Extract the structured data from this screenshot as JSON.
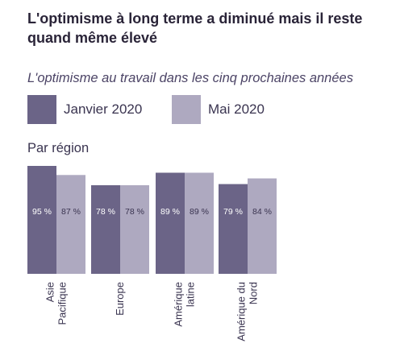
{
  "title": "L'optimisme à long terme a diminué mais il reste quand même élevé",
  "subtitle": "L'optimisme au travail dans les cinq prochaines années",
  "legend": [
    {
      "label": "Janvier 2020",
      "color": "#6b6487"
    },
    {
      "label": "Mai 2020",
      "color": "#aea9c0"
    }
  ],
  "section_label": "Par région",
  "chart_data": {
    "type": "bar",
    "categories": [
      [
        "Asie",
        "Pacifique"
      ],
      [
        "Europe"
      ],
      [
        "Amérique",
        "latine"
      ],
      [
        "Amérique du",
        "Nord"
      ]
    ],
    "series": [
      {
        "name": "Janvier 2020",
        "values": [
          95,
          78,
          89,
          79
        ],
        "labels": [
          "95 %",
          "78 %",
          "89 %",
          "79 %"
        ],
        "color": "#6b6487",
        "label_color": "#ffffff"
      },
      {
        "name": "Mai 2020",
        "values": [
          87,
          78,
          89,
          84
        ],
        "labels": [
          "87 %",
          "78 %",
          "89 %",
          "84 %"
        ],
        "color": "#aea9c0",
        "label_color": "#3a3450"
      }
    ],
    "unit": "%",
    "ylim": [
      0,
      100
    ],
    "grid": false
  }
}
